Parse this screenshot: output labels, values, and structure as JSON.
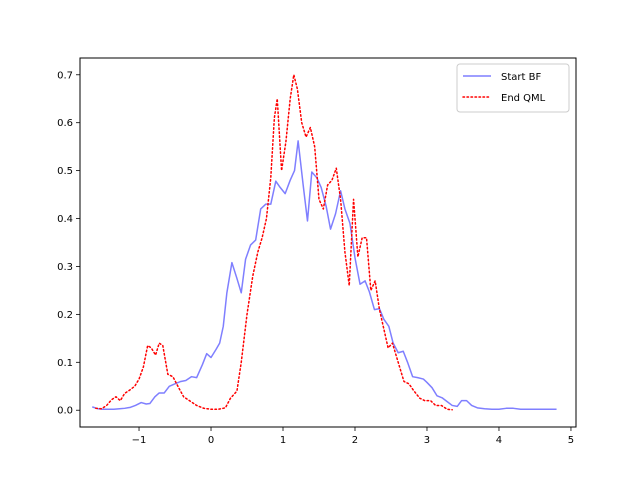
{
  "chart_data": {
    "type": "line",
    "title": "",
    "xlabel": "",
    "ylabel": "",
    "xlim": [
      -1.82,
      5.07
    ],
    "ylim": [
      -0.035,
      0.735
    ],
    "xticks": [
      -1,
      0,
      1,
      2,
      3,
      4,
      5
    ],
    "yticks": [
      0.0,
      0.1,
      0.2,
      0.3,
      0.4,
      0.5,
      0.6,
      0.7
    ],
    "grid": false,
    "legend_position": "top-right",
    "series": [
      {
        "name": "Start BF",
        "color": "#7f7fff",
        "style": "solid",
        "points": [
          [
            -1.65,
            0.007
          ],
          [
            -1.57,
            0.003
          ],
          [
            -1.5,
            0.002
          ],
          [
            -1.42,
            0.002
          ],
          [
            -1.35,
            0.002
          ],
          [
            -1.27,
            0.003
          ],
          [
            -1.2,
            0.004
          ],
          [
            -1.12,
            0.006
          ],
          [
            -1.05,
            0.01
          ],
          [
            -0.97,
            0.016
          ],
          [
            -0.9,
            0.013
          ],
          [
            -0.85,
            0.014
          ],
          [
            -0.78,
            0.028
          ],
          [
            -0.72,
            0.036
          ],
          [
            -0.65,
            0.036
          ],
          [
            -0.58,
            0.05
          ],
          [
            -0.5,
            0.055
          ],
          [
            -0.42,
            0.06
          ],
          [
            -0.35,
            0.062
          ],
          [
            -0.27,
            0.07
          ],
          [
            -0.2,
            0.068
          ],
          [
            -0.12,
            0.095
          ],
          [
            -0.06,
            0.118
          ],
          [
            0.0,
            0.11
          ],
          [
            0.07,
            0.127
          ],
          [
            0.12,
            0.14
          ],
          [
            0.17,
            0.175
          ],
          [
            0.22,
            0.245
          ],
          [
            0.29,
            0.308
          ],
          [
            0.36,
            0.275
          ],
          [
            0.42,
            0.245
          ],
          [
            0.48,
            0.315
          ],
          [
            0.55,
            0.345
          ],
          [
            0.62,
            0.355
          ],
          [
            0.69,
            0.42
          ],
          [
            0.76,
            0.43
          ],
          [
            0.83,
            0.43
          ],
          [
            0.9,
            0.478
          ],
          [
            0.96,
            0.465
          ],
          [
            1.03,
            0.452
          ],
          [
            1.1,
            0.48
          ],
          [
            1.16,
            0.5
          ],
          [
            1.21,
            0.562
          ],
          [
            1.28,
            0.47
          ],
          [
            1.34,
            0.395
          ],
          [
            1.4,
            0.497
          ],
          [
            1.47,
            0.485
          ],
          [
            1.53,
            0.465
          ],
          [
            1.6,
            0.425
          ],
          [
            1.66,
            0.378
          ],
          [
            1.73,
            0.41
          ],
          [
            1.8,
            0.458
          ],
          [
            1.86,
            0.42
          ],
          [
            1.93,
            0.39
          ],
          [
            2.0,
            0.318
          ],
          [
            2.07,
            0.263
          ],
          [
            2.14,
            0.27
          ],
          [
            2.2,
            0.247
          ],
          [
            2.27,
            0.21
          ],
          [
            2.34,
            0.212
          ],
          [
            2.4,
            0.19
          ],
          [
            2.47,
            0.175
          ],
          [
            2.53,
            0.14
          ],
          [
            2.6,
            0.12
          ],
          [
            2.67,
            0.123
          ],
          [
            2.73,
            0.1
          ],
          [
            2.8,
            0.07
          ],
          [
            2.87,
            0.068
          ],
          [
            2.95,
            0.065
          ],
          [
            3.0,
            0.058
          ],
          [
            3.07,
            0.047
          ],
          [
            3.14,
            0.03
          ],
          [
            3.21,
            0.026
          ],
          [
            3.28,
            0.018
          ],
          [
            3.35,
            0.01
          ],
          [
            3.42,
            0.008
          ],
          [
            3.48,
            0.02
          ],
          [
            3.55,
            0.02
          ],
          [
            3.62,
            0.01
          ],
          [
            3.7,
            0.005
          ],
          [
            3.8,
            0.003
          ],
          [
            3.9,
            0.002
          ],
          [
            4.0,
            0.002
          ],
          [
            4.1,
            0.004
          ],
          [
            4.2,
            0.004
          ],
          [
            4.3,
            0.002
          ],
          [
            4.4,
            0.002
          ],
          [
            4.55,
            0.002
          ],
          [
            4.7,
            0.002
          ],
          [
            4.8,
            0.002
          ]
        ]
      },
      {
        "name": "End QML",
        "color": "#ff0000",
        "style": "dotted",
        "points": [
          [
            -1.6,
            0.004
          ],
          [
            -1.52,
            0.003
          ],
          [
            -1.45,
            0.01
          ],
          [
            -1.38,
            0.022
          ],
          [
            -1.32,
            0.028
          ],
          [
            -1.26,
            0.02
          ],
          [
            -1.2,
            0.035
          ],
          [
            -1.13,
            0.042
          ],
          [
            -1.06,
            0.05
          ],
          [
            -1.0,
            0.065
          ],
          [
            -0.94,
            0.09
          ],
          [
            -0.88,
            0.135
          ],
          [
            -0.83,
            0.13
          ],
          [
            -0.77,
            0.115
          ],
          [
            -0.72,
            0.14
          ],
          [
            -0.67,
            0.135
          ],
          [
            -0.6,
            0.075
          ],
          [
            -0.53,
            0.07
          ],
          [
            -0.46,
            0.05
          ],
          [
            -0.38,
            0.028
          ],
          [
            -0.3,
            0.02
          ],
          [
            -0.2,
            0.01
          ],
          [
            -0.1,
            0.004
          ],
          [
            0.0,
            0.002
          ],
          [
            0.1,
            0.002
          ],
          [
            0.2,
            0.005
          ],
          [
            0.27,
            0.025
          ],
          [
            0.36,
            0.04
          ],
          [
            0.42,
            0.1
          ],
          [
            0.5,
            0.2
          ],
          [
            0.58,
            0.28
          ],
          [
            0.65,
            0.33
          ],
          [
            0.71,
            0.36
          ],
          [
            0.77,
            0.4
          ],
          [
            0.83,
            0.485
          ],
          [
            0.88,
            0.61
          ],
          [
            0.92,
            0.65
          ],
          [
            0.98,
            0.5
          ],
          [
            1.04,
            0.56
          ],
          [
            1.1,
            0.65
          ],
          [
            1.15,
            0.7
          ],
          [
            1.2,
            0.67
          ],
          [
            1.26,
            0.6
          ],
          [
            1.32,
            0.57
          ],
          [
            1.38,
            0.59
          ],
          [
            1.44,
            0.55
          ],
          [
            1.5,
            0.44
          ],
          [
            1.56,
            0.42
          ],
          [
            1.62,
            0.47
          ],
          [
            1.68,
            0.48
          ],
          [
            1.74,
            0.505
          ],
          [
            1.8,
            0.44
          ],
          [
            1.86,
            0.33
          ],
          [
            1.92,
            0.26
          ],
          [
            1.98,
            0.44
          ],
          [
            2.04,
            0.32
          ],
          [
            2.1,
            0.36
          ],
          [
            2.16,
            0.36
          ],
          [
            2.22,
            0.25
          ],
          [
            2.28,
            0.27
          ],
          [
            2.34,
            0.21
          ],
          [
            2.4,
            0.17
          ],
          [
            2.46,
            0.13
          ],
          [
            2.52,
            0.14
          ],
          [
            2.6,
            0.1
          ],
          [
            2.68,
            0.06
          ],
          [
            2.75,
            0.055
          ],
          [
            2.82,
            0.04
          ],
          [
            2.9,
            0.025
          ],
          [
            2.97,
            0.02
          ],
          [
            3.05,
            0.02
          ],
          [
            3.12,
            0.01
          ],
          [
            3.2,
            0.01
          ],
          [
            3.28,
            0.002
          ],
          [
            3.35,
            0.001
          ]
        ]
      }
    ]
  }
}
